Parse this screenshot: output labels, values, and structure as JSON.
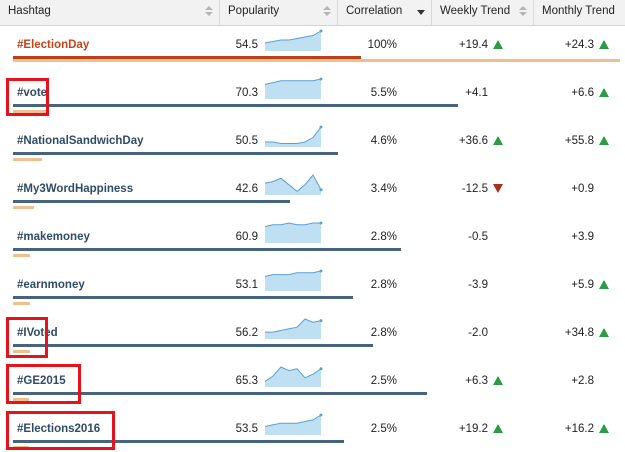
{
  "table": {
    "columns": [
      {
        "label": "Hashtag",
        "sort": "both"
      },
      {
        "label": "Popularity",
        "sort": "both"
      },
      {
        "label": "Correlation",
        "sort": "desc"
      },
      {
        "label": "Weekly Trend",
        "sort": "both"
      },
      {
        "label": "Monthly Trend",
        "sort": "both"
      }
    ],
    "rows": [
      {
        "hashtag": "#ElectionDay",
        "popularity": "54.5",
        "spark": [
          4,
          5,
          6,
          6,
          7,
          8,
          9,
          12
        ],
        "correlation": "100%",
        "weekly": "+19.4",
        "weekly_dir": "up",
        "monthly": "+24.3",
        "monthly_dir": "up",
        "main_share": 0.562,
        "sec_share": 1.0,
        "highlight": true
      },
      {
        "hashtag": "#vote",
        "popularity": "70.3",
        "spark": [
          7,
          8,
          9,
          9,
          9,
          9,
          9,
          10
        ],
        "correlation": "5.5%",
        "weekly": "+4.1",
        "weekly_dir": "none",
        "monthly": "+6.6",
        "monthly_dir": "up",
        "main_share": 0.718,
        "sec_share": 0.055,
        "highlight": false
      },
      {
        "hashtag": "#NationalSandwichDay",
        "popularity": "50.5",
        "spark": [
          2,
          2,
          1,
          1,
          1,
          2,
          5,
          12
        ],
        "correlation": "4.6%",
        "weekly": "+36.6",
        "weekly_dir": "up",
        "monthly": "+55.8",
        "monthly_dir": "up",
        "main_share": 0.524,
        "sec_share": 0.046,
        "highlight": false
      },
      {
        "hashtag": "#My3WordHappiness",
        "popularity": "42.6",
        "spark": [
          6,
          7,
          9,
          5,
          1,
          5,
          11,
          2
        ],
        "correlation": "3.4%",
        "weekly": "-12.5",
        "weekly_dir": "down",
        "monthly": "+0.9",
        "monthly_dir": "none",
        "main_share": 0.447,
        "sec_share": 0.034,
        "highlight": false
      },
      {
        "hashtag": "#makemoney",
        "popularity": "60.9",
        "spark": [
          8,
          9,
          9,
          10,
          9,
          9,
          10,
          10
        ],
        "correlation": "2.8%",
        "weekly": "-0.5",
        "weekly_dir": "none",
        "monthly": "+3.9",
        "monthly_dir": "none",
        "main_share": 0.626,
        "sec_share": 0.028,
        "highlight": false
      },
      {
        "hashtag": "#earnmoney",
        "popularity": "53.1",
        "spark": [
          7,
          8,
          8,
          8,
          9,
          9,
          9,
          10
        ],
        "correlation": "2.8%",
        "weekly": "-3.9",
        "weekly_dir": "none",
        "monthly": "+5.9",
        "monthly_dir": "up",
        "main_share": 0.549,
        "sec_share": 0.028,
        "highlight": false
      },
      {
        "hashtag": "#IVoted",
        "popularity": "56.2",
        "spark": [
          3,
          3,
          4,
          5,
          6,
          11,
          9,
          10
        ],
        "correlation": "2.8%",
        "weekly": "-2.0",
        "weekly_dir": "none",
        "monthly": "+34.8",
        "monthly_dir": "up",
        "main_share": 0.58,
        "sec_share": 0.028,
        "highlight": false
      },
      {
        "hashtag": "#GE2015",
        "popularity": "65.3",
        "spark": [
          2,
          5,
          10,
          8,
          9,
          4,
          6,
          9
        ],
        "correlation": "2.5%",
        "weekly": "+6.3",
        "weekly_dir": "up",
        "monthly": "+2.8",
        "monthly_dir": "none",
        "main_share": 0.668,
        "sec_share": 0.025,
        "highlight": false
      },
      {
        "hashtag": "#Elections2016",
        "popularity": "53.5",
        "spark": [
          4,
          5,
          6,
          6,
          6,
          7,
          8,
          11
        ],
        "correlation": "2.5%",
        "weekly": "+19.2",
        "weekly_dir": "up",
        "monthly": "+16.2",
        "monthly_dir": "up",
        "main_share": 0.534,
        "sec_share": 0.025,
        "highlight": false
      }
    ]
  },
  "colors": {
    "tag": "#2f4c66",
    "tag_highlight": "#c8431a",
    "bar_main": "#46647e",
    "bar_highlight": "#bb4218",
    "bar_secondary": "#f1bf8f",
    "trend_up": "#2e9a43",
    "trend_down": "#a8301c",
    "spark_line": "#5aa0d0",
    "spark_fill": "#bfe0f3",
    "annotation_box": "#e8121d"
  },
  "annotations": {
    "boxed_rows": [
      1,
      6,
      7,
      8
    ]
  }
}
